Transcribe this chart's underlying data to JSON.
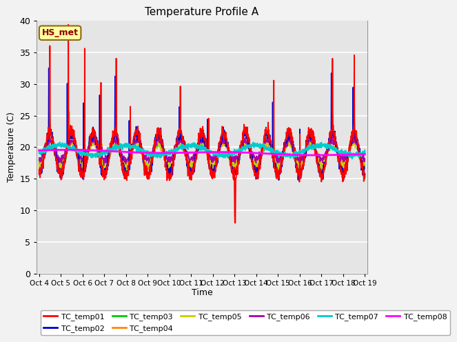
{
  "title": "Temperature Profile A",
  "xlabel": "Time",
  "ylabel": "Temperature (C)",
  "ylim": [
    0,
    40
  ],
  "yticks": [
    0,
    5,
    10,
    15,
    20,
    25,
    30,
    35,
    40
  ],
  "annotation_text": "HS_met",
  "annotation_color": "#8B0000",
  "annotation_bg": "#FFFFA0",
  "annotation_border": "#8B6914",
  "plot_bg_color": "#E5E5E5",
  "fig_bg_color": "#F2F2F2",
  "legend_entries": [
    "TC_temp01",
    "TC_temp02",
    "TC_temp03",
    "TC_temp04",
    "TC_temp05",
    "TC_temp06",
    "TC_temp07",
    "TC_temp08"
  ],
  "line_colors": [
    "#FF0000",
    "#0000CC",
    "#00CC00",
    "#FF8800",
    "#CCCC00",
    "#AA00AA",
    "#00CCCC",
    "#FF00FF"
  ],
  "x_tick_labels": [
    "Oct 4",
    "Oct 5",
    "Oct 6",
    "Oct 7",
    "Oct 8",
    "Oct 9",
    "Oct 10",
    "Oct 11",
    "Oct 12",
    "Oct 13",
    "Oct 14",
    "Oct 15",
    "Oct 16",
    "Oct 17",
    "Oct 18",
    "Oct 19"
  ],
  "n_points": 1500
}
